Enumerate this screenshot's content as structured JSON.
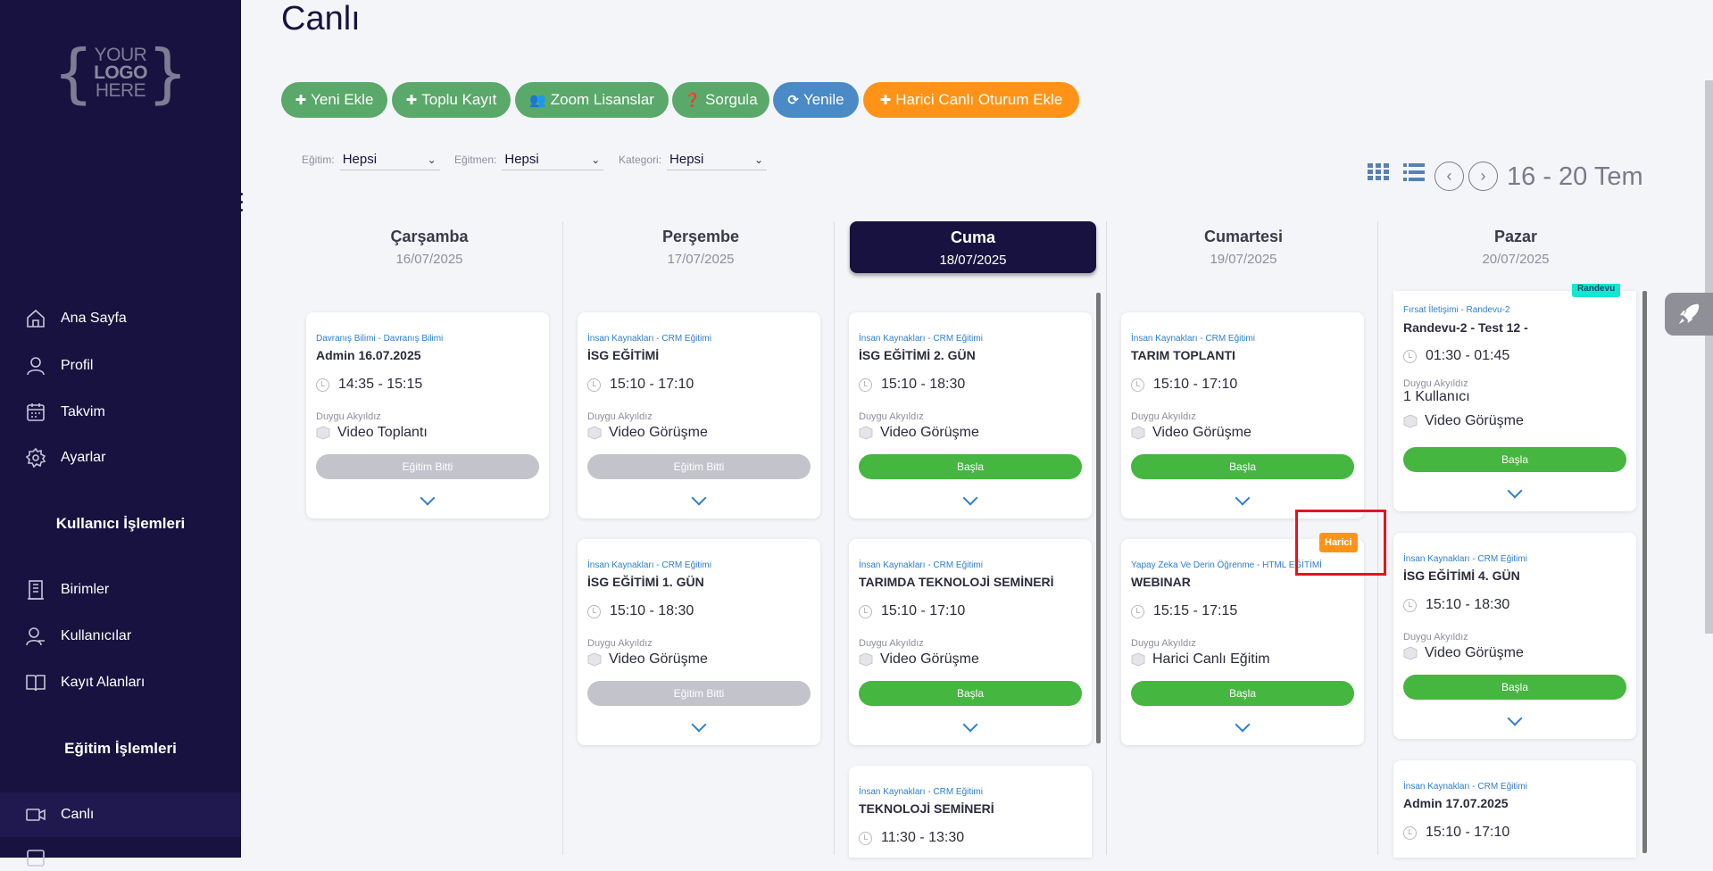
{
  "sidebar": {
    "logo": {
      "line1": "YOUR",
      "line2": "LOGO",
      "line3": "HERE"
    },
    "nav_items": [
      {
        "label": "Ana Sayfa",
        "icon": "home-icon"
      },
      {
        "label": "Profil",
        "icon": "user-icon"
      },
      {
        "label": "Takvim",
        "icon": "calendar-icon"
      },
      {
        "label": "Ayarlar",
        "icon": "gear-icon"
      }
    ],
    "section_user": "Kullanıcı İşlemleri",
    "user_items": [
      {
        "label": "Birimler",
        "icon": "building-icon"
      },
      {
        "label": "Kullanıcılar",
        "icon": "users-icon"
      },
      {
        "label": "Kayıt Alanları",
        "icon": "book-icon"
      }
    ],
    "section_edu": "Eğitim İşlemleri",
    "edu_items": [
      {
        "label": "Canlı",
        "icon": "video-icon",
        "active": true
      }
    ]
  },
  "page": {
    "title": "Canlı"
  },
  "toolbar": {
    "new": "Yeni Ekle",
    "bulk": "Toplu Kayıt",
    "zoom": "Zoom Lisanslar",
    "query": "Sorgula",
    "refresh": "Yenile",
    "external": "Harici Canlı Oturum Ekle"
  },
  "filters": {
    "education": {
      "label": "Eğitim:",
      "value": "Hepsi"
    },
    "trainer": {
      "label": "Eğitmen:",
      "value": "Hepsi"
    },
    "category": {
      "label": "Kategori:",
      "value": "Hepsi"
    }
  },
  "calendar": {
    "range": "16 - 20 Tem"
  },
  "days": [
    {
      "name": "Çarşamba",
      "date": "16/07/2025"
    },
    {
      "name": "Perşembe",
      "date": "17/07/2025"
    },
    {
      "name": "Cuma",
      "date": "18/07/2025"
    },
    {
      "name": "Cumartesi",
      "date": "19/07/2025"
    },
    {
      "name": "Pazar",
      "date": "20/07/2025"
    }
  ],
  "cards": {
    "d0c0": {
      "cat": "Davranış Bilimi - Davranış Bilimi",
      "title": "Admin 16.07.2025",
      "time": "14:35 - 15:15",
      "inst": "Duygu Akyıldız",
      "type": "Video Toplantı",
      "action": "Eğitim Bitti"
    },
    "d1c0": {
      "cat": "İnsan Kaynakları - CRM Eğitimi",
      "title": "İSG EĞİTİMİ",
      "time": "15:10 - 17:10",
      "inst": "Duygu Akyıldız",
      "type": "Video Görüşme",
      "action": "Eğitim Bitti"
    },
    "d1c1": {
      "cat": "İnsan Kaynakları - CRM Eğitimi",
      "title": "İSG EĞİTİMİ 1. GÜN",
      "time": "15:10 - 18:30",
      "inst": "Duygu Akyıldız",
      "type": "Video Görüşme",
      "action": "Eğitim Bitti"
    },
    "d2c0": {
      "cat": "İnsan Kaynakları - CRM Eğitimi",
      "title": "İSG EĞİTİMİ 2. GÜN",
      "time": "15:10 - 18:30",
      "inst": "Duygu Akyıldız",
      "type": "Video Görüşme",
      "action": "Başla"
    },
    "d2c1": {
      "cat": "İnsan Kaynakları - CRM Eğitimi",
      "title": "TARIMDA TEKNOLOJİ SEMİNERİ",
      "time": "15:10 - 17:10",
      "inst": "Duygu Akyıldız",
      "type": "Video Görüşme",
      "action": "Başla"
    },
    "d2c2": {
      "cat": "İnsan Kaynakları - CRM Eğitimi",
      "title": "TEKNOLOJİ SEMİNERİ",
      "time": "11:30 - 13:30"
    },
    "d3c0": {
      "cat": "İnsan Kaynakları - CRM Eğitimi",
      "title": "TARIM TOPLANTI",
      "time": "15:10 - 17:10",
      "inst": "Duygu Akyıldız",
      "type": "Video Görüşme",
      "action": "Başla"
    },
    "d3c1": {
      "cat": "Yapay Zeka Ve Derin Öğrenme - HTML EĞİTİMİ",
      "title": "WEBINAR",
      "time": "15:15 - 17:15",
      "inst": "Duygu Akyıldız",
      "type": "Harici Canlı Eğitim",
      "action": "Başla",
      "badge": "Harici"
    },
    "d4c0": {
      "cat": "Fırsat İletişimi - Randevu-2",
      "title": "Randevu-2 - Test 12 -",
      "time": "01:30 - 01:45",
      "inst": "Duygu Akyıldız",
      "users": "1 Kullanıcı",
      "type": "Video Görüşme",
      "action": "Başla",
      "badge": "Randevu"
    },
    "d4c1": {
      "cat": "İnsan Kaynakları - CRM Eğitimi",
      "title": "İSG EĞİTİMİ 4. GÜN",
      "time": "15:10 - 18:30",
      "inst": "Duygu Akyıldız",
      "type": "Video Görüşme",
      "action": "Başla"
    },
    "d4c2": {
      "cat": "İnsan Kaynakları - CRM Eğitimi",
      "title": "Admin 17.07.2025",
      "time": "15:10 - 17:10"
    }
  },
  "colors": {
    "sidebar": "#181240",
    "green": "#5aa86a",
    "blue": "#4a8ac6",
    "orange": "#ff9318",
    "start": "#45b640",
    "done": "#c3c3cb",
    "link": "#2d7fd0"
  }
}
